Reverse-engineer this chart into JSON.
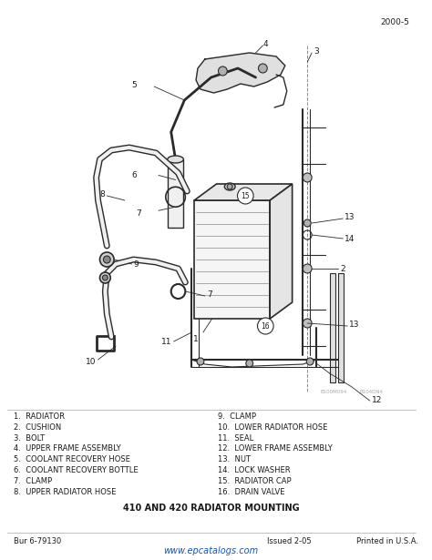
{
  "page_number": "2000-5",
  "title": "410 AND 420 RADIATOR MOUNTING",
  "bulletin": "Bur 6-79130",
  "issued": "Issued 2-05",
  "printed": "Printed in U.S.A.",
  "website": "www.epcatalogs.com",
  "parts_left": [
    "1.  RADIATOR",
    "2.  CUSHION",
    "3.  BOLT",
    "4.  UPPER FRAME ASSEMBLY",
    "5.  COOLANT RECOVERY HOSE",
    "6.  COOLANT RECOVERY BOTTLE",
    "7.  CLAMP",
    "8.  UPPER RADIATOR HOSE"
  ],
  "parts_right": [
    "9.  CLAMP",
    "10.  LOWER RADIATOR HOSE",
    "11.  SEAL",
    "12.  LOWER FRAME ASSEMBLY",
    "13.  NUT",
    "14.  LOCK WASHER",
    "15.  RADIATOR CAP",
    "16.  DRAIN VALVE"
  ],
  "bg_color": "#ffffff",
  "text_color": "#1a1a1a",
  "diagram_color": "#2a2a2a",
  "light_gray": "#c8c8c8",
  "mid_gray": "#888888"
}
